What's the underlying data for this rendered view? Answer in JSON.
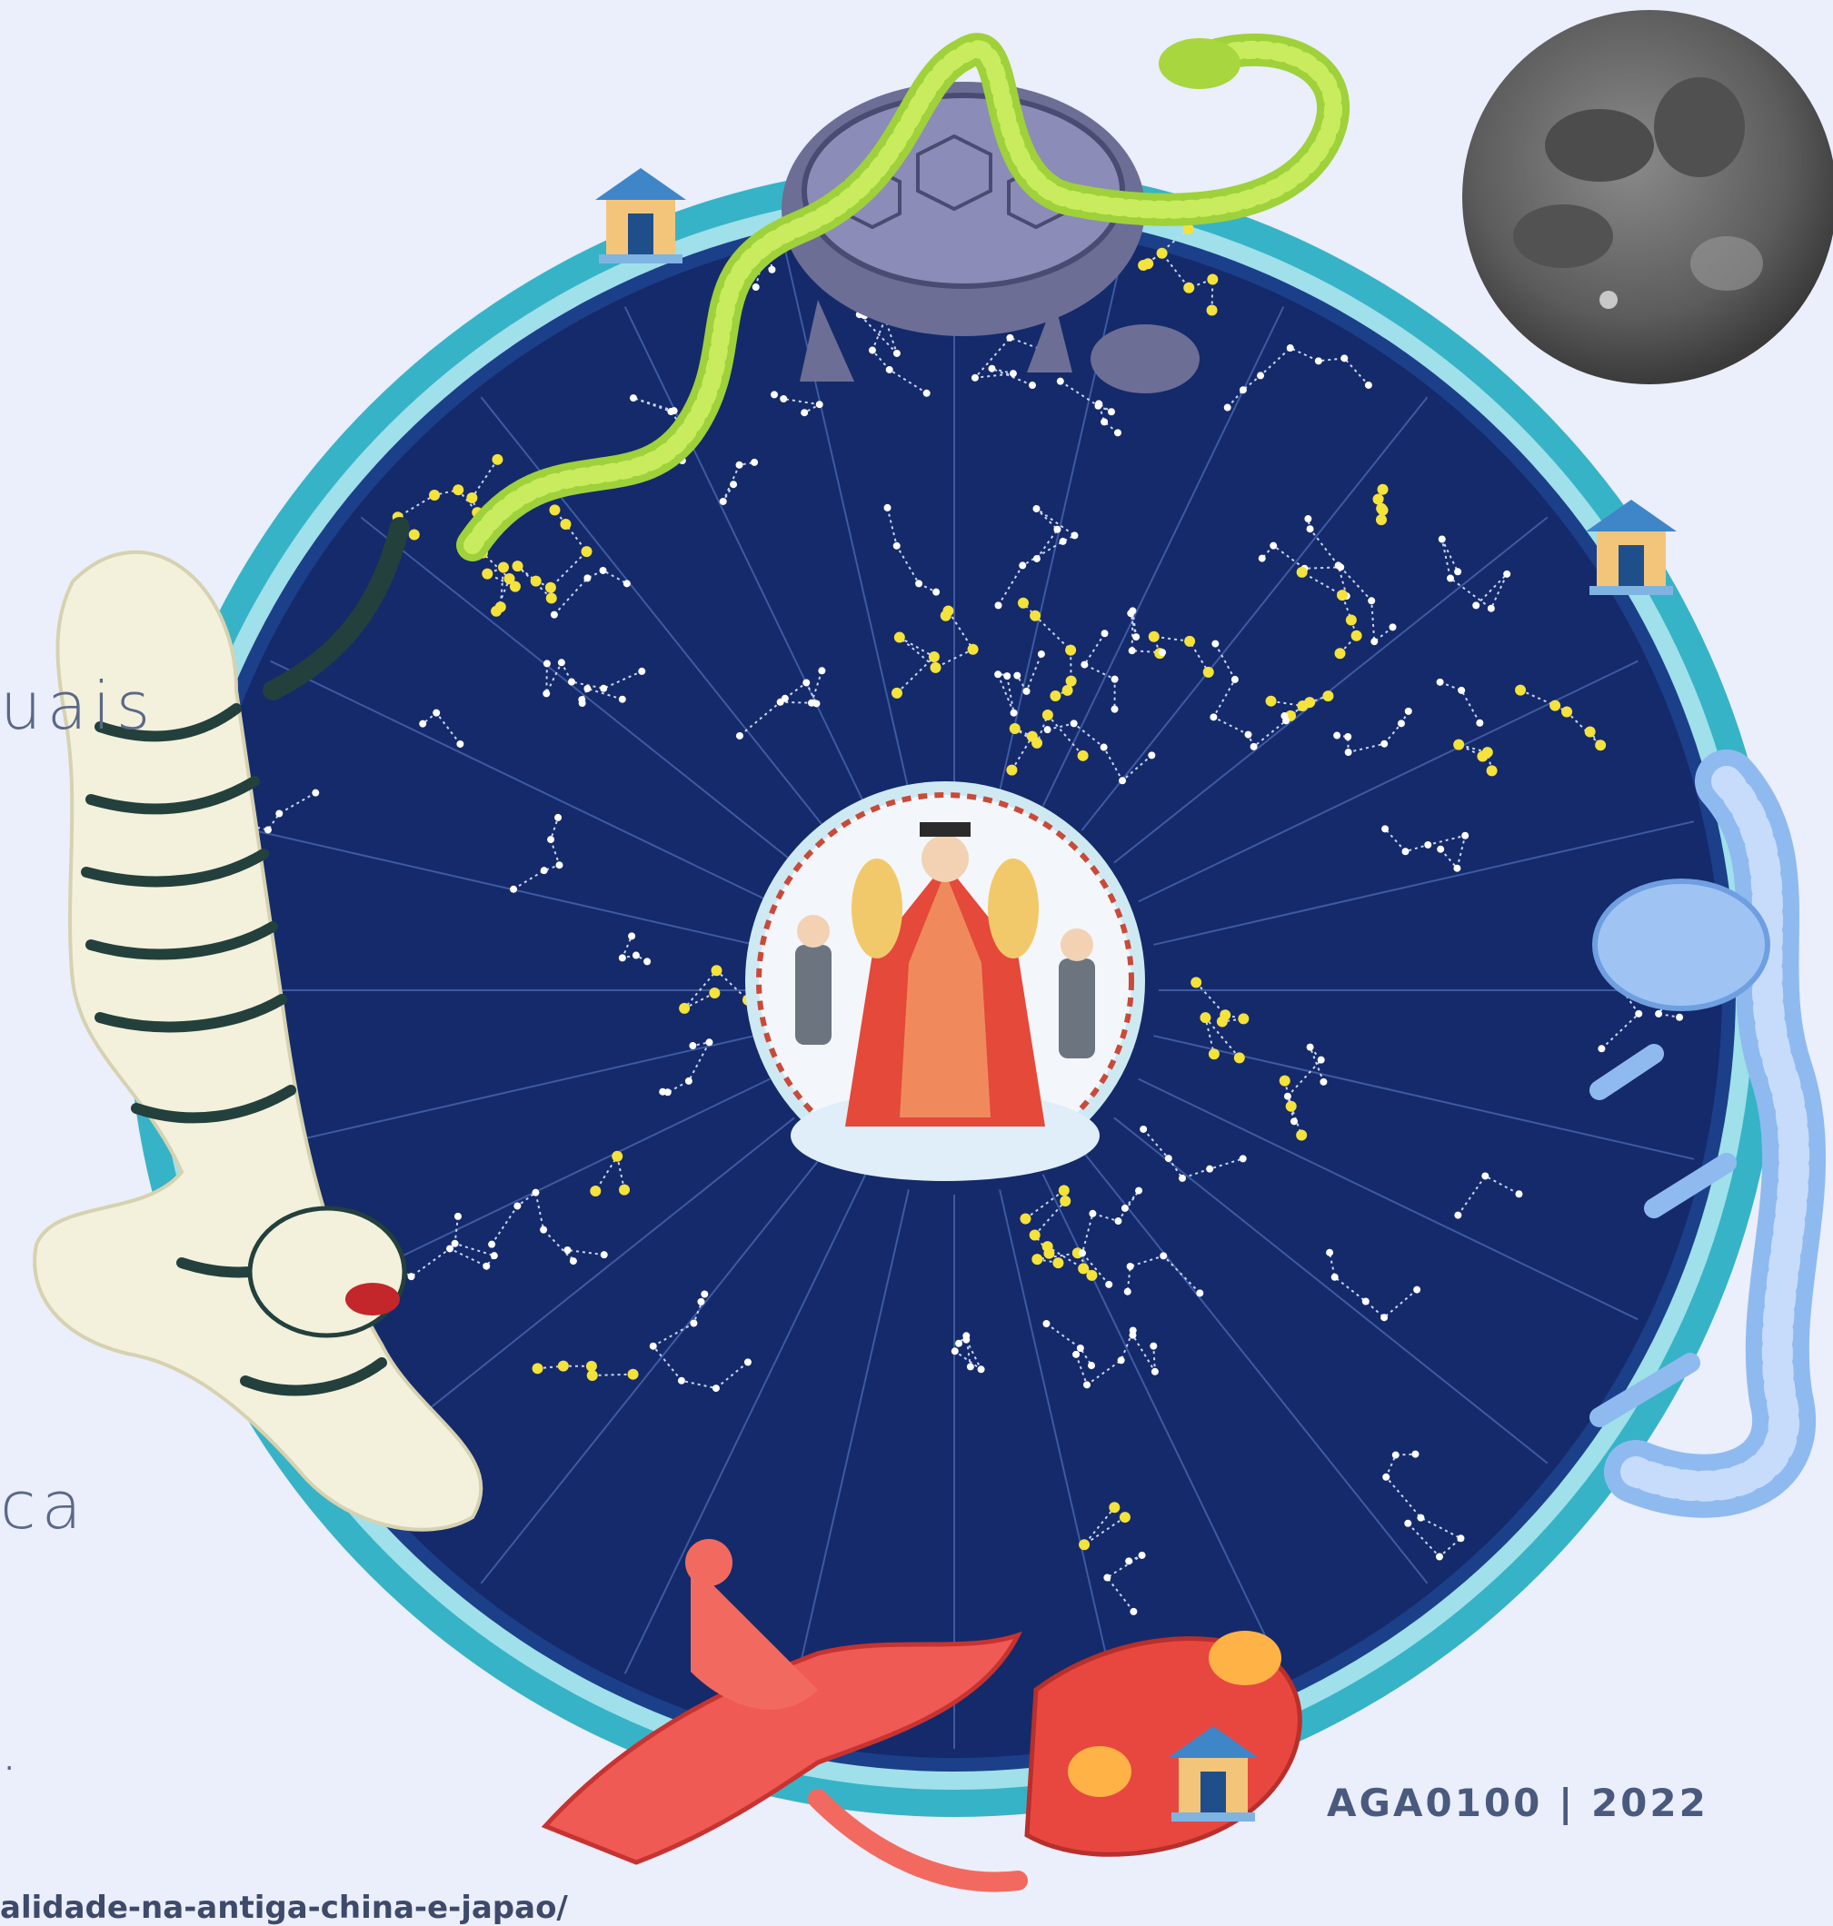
{
  "slide": {
    "left_fragments": [
      "uais",
      "ca",
      "."
    ],
    "footer": "AGA0100 | 2022",
    "source_url": "alidade-na-antiga-china-e-japao/"
  },
  "illustration": {
    "chart_background": "#142a6b",
    "chart_border": "#37b3c7",
    "moon_color": "#6e6e6e",
    "star_color": "#ffffff",
    "bright_star_color": "#f5e23a",
    "creatures": [
      "turtle-with-snake",
      "white-tiger",
      "azure-dragon",
      "vermilion-bird"
    ],
    "center_figure": "emperor",
    "pavilion_icon": "pavilion-icon"
  }
}
